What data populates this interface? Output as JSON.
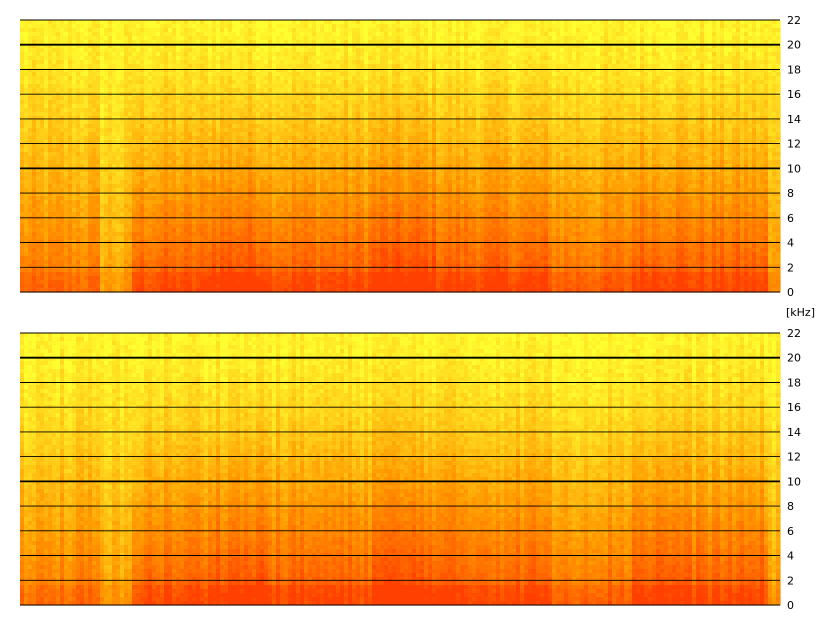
{
  "chart_data": {
    "type": "heatmap",
    "subtype": "spectrogram",
    "title": "",
    "xlabel": "",
    "ylabel": "[kHz]",
    "grid": true,
    "legend": "none",
    "color_scale": {
      "low": "#ff4000",
      "mid": "#ff9a00",
      "high": "#ffff30"
    },
    "panels": [
      {
        "channel": 1,
        "ylim": [
          0,
          22
        ],
        "yticks": [
          "0",
          "2",
          "4",
          "6",
          "8",
          "10",
          "12",
          "14",
          "16",
          "18",
          "20",
          "22"
        ],
        "emphasized_gridlines": [
          "10",
          "20"
        ]
      },
      {
        "channel": 2,
        "ylim": [
          0,
          22
        ],
        "yticks": [
          "0",
          "2",
          "4",
          "6",
          "8",
          "10",
          "12",
          "14",
          "16",
          "18",
          "20",
          "22"
        ],
        "emphasized_gridlines": [
          "10",
          "20"
        ]
      }
    ],
    "time_segments": [
      {
        "start": 0.0,
        "end": 0.105,
        "energy": 0.62
      },
      {
        "start": 0.105,
        "end": 0.145,
        "energy": 0.4
      },
      {
        "start": 0.145,
        "end": 0.245,
        "energy": 0.78
      },
      {
        "start": 0.245,
        "end": 0.325,
        "energy": 0.9
      },
      {
        "start": 0.325,
        "end": 0.465,
        "energy": 0.8
      },
      {
        "start": 0.465,
        "end": 0.545,
        "energy": 0.92
      },
      {
        "start": 0.545,
        "end": 0.695,
        "energy": 0.82
      },
      {
        "start": 0.695,
        "end": 0.805,
        "energy": 0.7
      },
      {
        "start": 0.805,
        "end": 0.875,
        "energy": 0.86
      },
      {
        "start": 0.875,
        "end": 0.985,
        "energy": 0.8
      },
      {
        "start": 0.985,
        "end": 1.0,
        "energy": 0.45
      }
    ]
  }
}
